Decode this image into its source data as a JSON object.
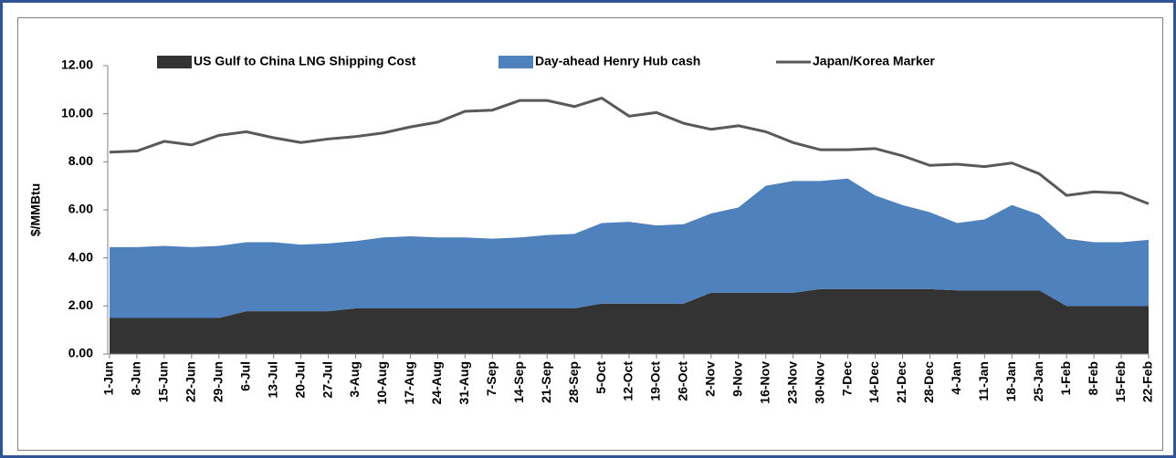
{
  "chart_data": {
    "type": "area",
    "stacked": true,
    "legend": "top",
    "y_label": "$/MMBtu",
    "categories": [
      "1-Jun",
      "8-Jun",
      "15-Jun",
      "22-Jun",
      "29-Jun",
      "6-Jul",
      "13-Jul",
      "20-Jul",
      "27-Jul",
      "3-Aug",
      "10-Aug",
      "17-Aug",
      "24-Aug",
      "31-Aug",
      "7-Sep",
      "14-Sep",
      "21-Sep",
      "28-Sep",
      "5-Oct",
      "12-Oct",
      "19-Oct",
      "26-Oct",
      "2-Nov",
      "9-Nov",
      "16-Nov",
      "23-Nov",
      "30-Nov",
      "7-Dec",
      "14-Dec",
      "21-Dec",
      "28-Dec",
      "4-Jan",
      "11-Jan",
      "18-Jan",
      "25-Jan",
      "1-Feb",
      "8-Feb",
      "15-Feb",
      "22-Feb"
    ],
    "series": [
      {
        "name": "US Gulf to China LNG Shipping Cost",
        "type": "area",
        "color": "#333333",
        "values": [
          1.5,
          1.5,
          1.5,
          1.5,
          1.5,
          1.78,
          1.78,
          1.78,
          1.78,
          1.9,
          1.9,
          1.9,
          1.9,
          1.9,
          1.9,
          1.9,
          1.9,
          1.9,
          2.1,
          2.1,
          2.1,
          2.1,
          2.55,
          2.55,
          2.55,
          2.55,
          2.7,
          2.7,
          2.7,
          2.7,
          2.7,
          2.65,
          2.65,
          2.65,
          2.65,
          2.0,
          2.0,
          2.0,
          2.0
        ]
      },
      {
        "name": "Day-ahead Henry Hub cash",
        "type": "area",
        "color": "#4f81bd",
        "values": [
          2.95,
          2.95,
          3.0,
          2.95,
          3.0,
          2.87,
          2.87,
          2.77,
          2.82,
          2.8,
          2.95,
          3.0,
          2.95,
          2.95,
          2.9,
          2.95,
          3.05,
          3.1,
          3.35,
          3.4,
          3.25,
          3.3,
          3.3,
          3.55,
          4.45,
          4.65,
          4.5,
          4.6,
          3.9,
          3.5,
          3.2,
          2.8,
          2.95,
          3.55,
          3.15,
          2.8,
          2.65,
          2.65,
          2.75
        ]
      },
      {
        "name": "Japan/Korea Marker",
        "type": "line",
        "color": "#595959",
        "values": [
          8.4,
          8.45,
          8.85,
          8.7,
          9.1,
          9.25,
          9.0,
          8.8,
          8.95,
          9.05,
          9.2,
          9.45,
          9.65,
          10.1,
          10.15,
          10.55,
          10.55,
          10.3,
          10.65,
          9.9,
          10.05,
          9.6,
          9.35,
          9.5,
          9.25,
          8.8,
          8.5,
          8.5,
          8.55,
          8.25,
          7.85,
          7.9,
          7.8,
          7.95,
          7.5,
          6.6,
          6.75,
          6.7,
          6.25
        ]
      }
    ],
    "ylim": [
      0,
      12
    ],
    "yticks": [
      {
        "value": 0,
        "label": "0.00"
      },
      {
        "value": 2,
        "label": "2.00"
      },
      {
        "value": 4,
        "label": "4.00"
      },
      {
        "value": 6,
        "label": "6.00"
      },
      {
        "value": 8,
        "label": "8.00"
      },
      {
        "value": 10,
        "label": "10.00"
      },
      {
        "value": 12,
        "label": "12.00"
      }
    ]
  }
}
